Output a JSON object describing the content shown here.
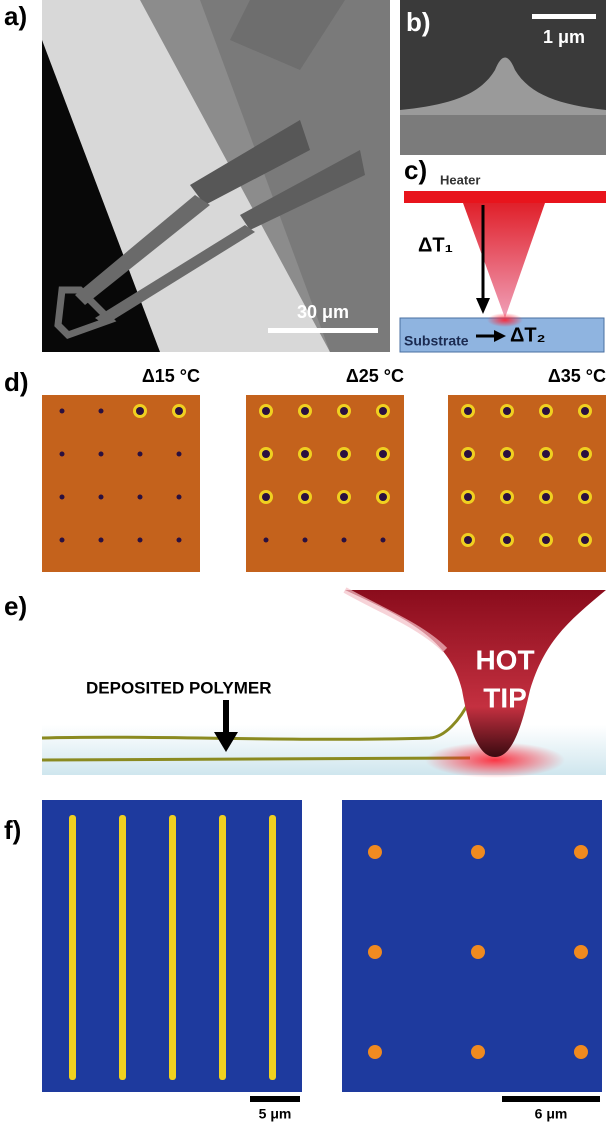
{
  "panels": {
    "a": {
      "label": "a)",
      "scale_bar": "30 μm"
    },
    "b": {
      "label": "b)",
      "scale_bar": "1 μm"
    },
    "c": {
      "label": "c)",
      "heater": "Heater",
      "delta_t1": "ΔT₁",
      "substrate": "Substrate",
      "delta_t2": "ΔT₂"
    },
    "d": {
      "label": "d)",
      "titles": [
        "Δ15 °C",
        "Δ25 °C",
        "Δ35 °C"
      ]
    },
    "e": {
      "label": "e)",
      "deposited": "DEPOSITED POLYMER",
      "hot": "HOT",
      "tip": "TIP"
    },
    "f": {
      "label": "f)",
      "scale_bars": [
        "5 μm",
        "6 μm"
      ]
    }
  }
}
